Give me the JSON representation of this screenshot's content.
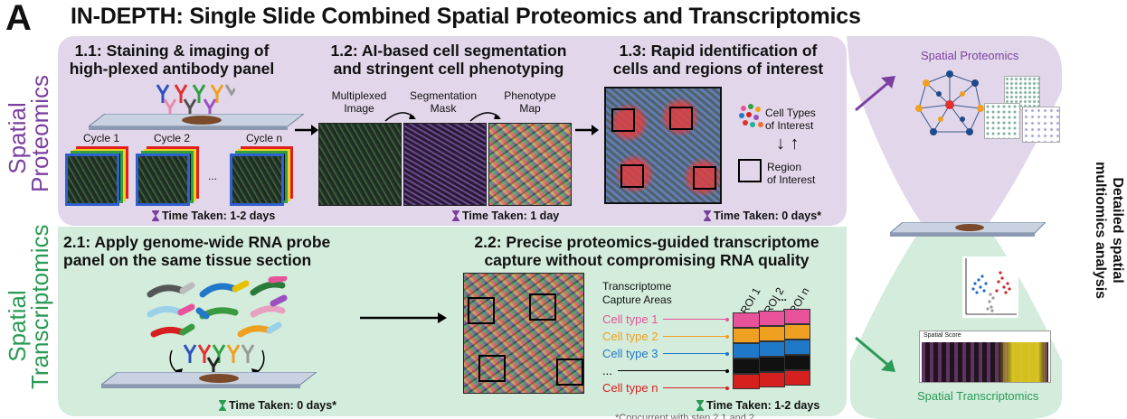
{
  "figure": {
    "panel_letter": "A",
    "title": "IN-DEPTH: Single Slide Combined Spatial Proteomics and Transcriptomics"
  },
  "proteomics": {
    "side_label_line1": "Spatial",
    "side_label_line2": "Proteomics",
    "color": "#7b3fa0",
    "steps": [
      {
        "title_line1": "1.1: Staining & imaging of",
        "title_line2": "high-plexed antibody panel",
        "time": "Time Taken: 1-2 days"
      },
      {
        "title_line1": "1.2: AI-based cell segmentation",
        "title_line2": "and stringent cell phenotyping",
        "time": "Time Taken: 1 day"
      },
      {
        "title_line1": "1.3: Rapid identification of",
        "title_line2": "cells and regions of interest",
        "time": "Time Taken: 0 days*"
      }
    ],
    "cycles": [
      "Cycle 1",
      "Cycle 2",
      "...",
      "Cycle n"
    ],
    "images": [
      {
        "label_line1": "Multiplexed",
        "label_line2": "Image"
      },
      {
        "label_line1": "Segmentation",
        "label_line2": "Mask"
      },
      {
        "label_line1": "Phenotype",
        "label_line2": "Map"
      }
    ],
    "legend": {
      "cell_types_line1": "Cell Types",
      "cell_types_line2": "of Interest",
      "arrows": "↓ ↑",
      "region_line1": "Region",
      "region_line2": "of Interest"
    }
  },
  "transcriptomics": {
    "side_label_line1": "Spatial",
    "side_label_line2": "Transcriptomics",
    "color": "#2a9a55",
    "steps": [
      {
        "title_line1": "2.1: Apply genome-wide RNA probe",
        "title_line2": "panel on the same tissue section",
        "time": "Time Taken: 0 days*"
      },
      {
        "title_line1": "2.2: Precise proteomics-guided transcriptome",
        "title_line2": "capture without compromising RNA quality",
        "time": "Time Taken: 1-2 days"
      }
    ],
    "capture_title_line1": "Transcriptome",
    "capture_title_line2": "Capture Areas",
    "capture_rows": [
      {
        "label": "Cell type 1",
        "color": "#e8529a"
      },
      {
        "label": "Cell type 2",
        "color": "#f0a020"
      },
      {
        "label": "Cell type 3",
        "color": "#1f78c8"
      },
      {
        "label": "...",
        "color": "#000000"
      },
      {
        "label": "Cell type n",
        "color": "#d62020"
      }
    ],
    "rois": [
      "ROI 1",
      "ROI 2",
      "ROI n"
    ],
    "roi_dots": "...",
    "footnote": "*Concurrent with step 2.1 and 2"
  },
  "right": {
    "top_label": "Spatial Proteomics",
    "bottom_label": "Spatial Transcriptomics",
    "heatmap_label": "Spatial Score",
    "vertical_label_line1": "Detailed spatial",
    "vertical_label_line2": "multiomics analysis"
  }
}
